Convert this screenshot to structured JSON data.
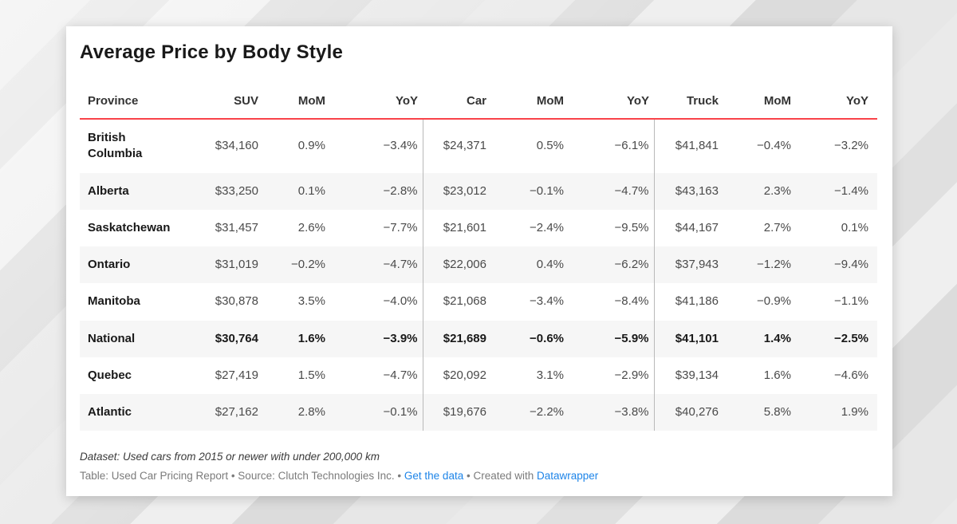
{
  "chart_data": {
    "type": "table",
    "title": "Average Price by Body Style",
    "columns": [
      "Province",
      "SUV",
      "MoM",
      "YoY",
      "Car",
      "MoM",
      "YoY",
      "Truck",
      "MoM",
      "YoY"
    ],
    "rows": [
      {
        "emphasis": false,
        "cells": [
          "British Columbia",
          "$34,160",
          "0.9%",
          "−3.4%",
          "$24,371",
          "0.5%",
          "−6.1%",
          "$41,841",
          "−0.4%",
          "−3.2%"
        ]
      },
      {
        "emphasis": false,
        "cells": [
          "Alberta",
          "$33,250",
          "0.1%",
          "−2.8%",
          "$23,012",
          "−0.1%",
          "−4.7%",
          "$43,163",
          "2.3%",
          "−1.4%"
        ]
      },
      {
        "emphasis": false,
        "cells": [
          "Saskatchewan",
          "$31,457",
          "2.6%",
          "−7.7%",
          "$21,601",
          "−2.4%",
          "−9.5%",
          "$44,167",
          "2.7%",
          "0.1%"
        ]
      },
      {
        "emphasis": false,
        "cells": [
          "Ontario",
          "$31,019",
          "−0.2%",
          "−4.7%",
          "$22,006",
          "0.4%",
          "−6.2%",
          "$37,943",
          "−1.2%",
          "−9.4%"
        ]
      },
      {
        "emphasis": false,
        "cells": [
          "Manitoba",
          "$30,878",
          "3.5%",
          "−4.0%",
          "$21,068",
          "−3.4%",
          "−8.4%",
          "$41,186",
          "−0.9%",
          "−1.1%"
        ]
      },
      {
        "emphasis": true,
        "cells": [
          "National",
          "$30,764",
          "1.6%",
          "−3.9%",
          "$21,689",
          "−0.6%",
          "−5.9%",
          "$41,101",
          "1.4%",
          "−2.5%"
        ]
      },
      {
        "emphasis": false,
        "cells": [
          "Quebec",
          "$27,419",
          "1.5%",
          "−4.7%",
          "$20,092",
          "3.1%",
          "−2.9%",
          "$39,134",
          "1.6%",
          "−4.6%"
        ]
      },
      {
        "emphasis": false,
        "cells": [
          "Atlantic",
          "$27,162",
          "2.8%",
          "−0.1%",
          "$19,676",
          "−2.2%",
          "−3.8%",
          "$40,276",
          "5.8%",
          "1.9%"
        ]
      }
    ]
  },
  "notes": {
    "dataset": "Dataset: Used cars from 2015 or newer with under 200,000 km",
    "credit_prefix": "Table: Used Car Pricing Report • Source: Clutch Technologies Inc. • ",
    "get_data_link": "Get the data",
    "credit_middle": " • Created with ",
    "datawrapper_link": "Datawrapper"
  },
  "colors": {
    "header_rule": "#f94349",
    "link": "#1d84e8",
    "zebra_row": "#f6f6f6",
    "column_divider": "#b9b9b9",
    "card_background": "#ffffff"
  }
}
